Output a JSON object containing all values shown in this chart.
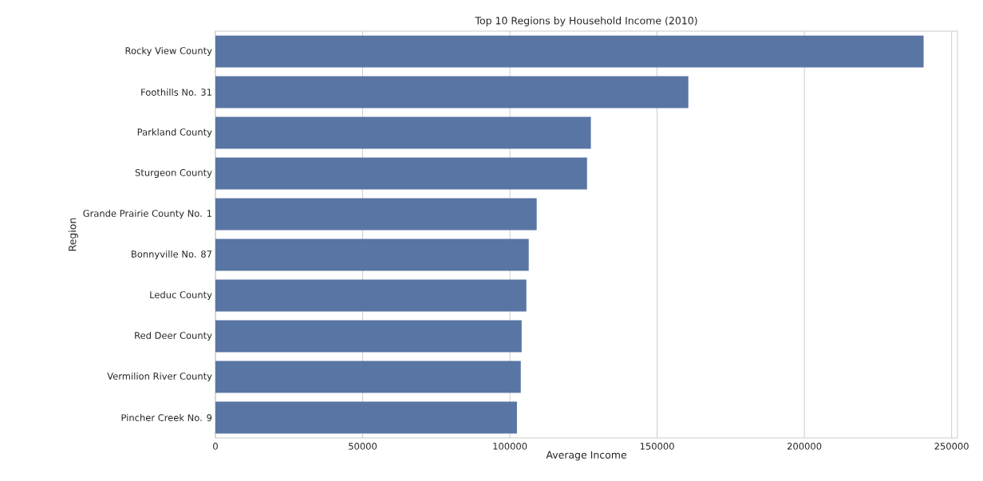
{
  "chart_data": {
    "type": "bar",
    "orientation": "horizontal",
    "title": "Top 10 Regions by Household Income (2010)",
    "xlabel": "Average Income",
    "ylabel": "Region",
    "categories": [
      "Rocky View County",
      "Foothills No. 31",
      "Parkland County",
      "Sturgeon County",
      "Grande Prairie County No. 1",
      "Bonnyville No. 87",
      "Leduc County",
      "Red Deer County",
      "Vermilion River County",
      "Pincher Creek No. 9"
    ],
    "values": [
      240500,
      160600,
      127500,
      126200,
      109100,
      106400,
      105600,
      104000,
      103700,
      102400
    ],
    "color": "#5975a4",
    "xlim": [
      0,
      252000
    ],
    "xticks": [
      0,
      50000,
      100000,
      150000,
      200000,
      250000
    ],
    "grid": "x"
  }
}
